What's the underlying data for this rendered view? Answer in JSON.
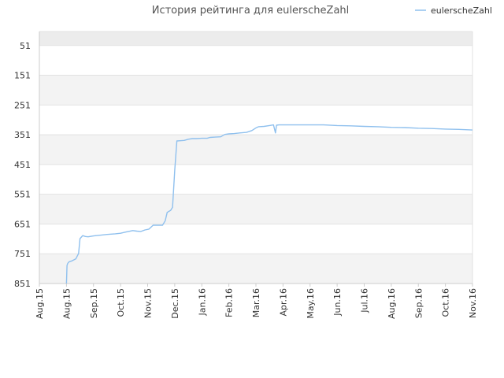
{
  "chart_data": {
    "type": "line",
    "title": "История рейтинга для eulerscheZahl",
    "legend_position": "top-right",
    "y_inverted": true,
    "ylim": [
      851,
      4
    ],
    "y_ticks": [
      51,
      151,
      251,
      351,
      451,
      551,
      651,
      751,
      851
    ],
    "x_ticks": [
      "Aug.15",
      "Aug.15",
      "Sep.15",
      "Oct.15",
      "Nov.15",
      "Dec.15",
      "Jan.16",
      "Feb.16",
      "Mar.16",
      "Apr.16",
      "May.16",
      "Jun.16",
      "Jul.16",
      "Aug.16",
      "Sep.16",
      "Oct.16",
      "Nov.16"
    ],
    "grid": "horizontal bands",
    "colors": {
      "line": "#8fc0ee",
      "band_light": "#f3f3f3",
      "band_top": "#ececec",
      "grid": "#e2e2e2",
      "axis": "#cccccc"
    },
    "series": [
      {
        "name": "eulerscheZahl",
        "points": [
          [
            1.0,
            851
          ],
          [
            1.02,
            790
          ],
          [
            1.05,
            783
          ],
          [
            1.1,
            778
          ],
          [
            1.2,
            775
          ],
          [
            1.35,
            768
          ],
          [
            1.45,
            750
          ],
          [
            1.5,
            700
          ],
          [
            1.55,
            695
          ],
          [
            1.6,
            690
          ],
          [
            1.7,
            693
          ],
          [
            1.8,
            694
          ],
          [
            2.0,
            691
          ],
          [
            2.2,
            689
          ],
          [
            2.5,
            686
          ],
          [
            2.8,
            684
          ],
          [
            3.0,
            682
          ],
          [
            3.2,
            678
          ],
          [
            3.45,
            673
          ],
          [
            3.6,
            675
          ],
          [
            3.75,
            676
          ],
          [
            3.9,
            671
          ],
          [
            4.05,
            668
          ],
          [
            4.2,
            655
          ],
          [
            4.4,
            655
          ],
          [
            4.55,
            655
          ],
          [
            4.65,
            640
          ],
          [
            4.72,
            612
          ],
          [
            4.85,
            605
          ],
          [
            4.92,
            595
          ],
          [
            5.0,
            470
          ],
          [
            5.08,
            372
          ],
          [
            5.2,
            371
          ],
          [
            5.35,
            370
          ],
          [
            5.5,
            366
          ],
          [
            5.65,
            364
          ],
          [
            5.8,
            364
          ],
          [
            6.0,
            363
          ],
          [
            6.2,
            363
          ],
          [
            6.3,
            360
          ],
          [
            6.5,
            359
          ],
          [
            6.7,
            358
          ],
          [
            6.85,
            350
          ],
          [
            7.0,
            348
          ],
          [
            7.2,
            347
          ],
          [
            7.4,
            345
          ],
          [
            7.65,
            343
          ],
          [
            7.85,
            337
          ],
          [
            8.0,
            328
          ],
          [
            8.1,
            324
          ],
          [
            8.3,
            323
          ],
          [
            8.5,
            320
          ],
          [
            8.65,
            318
          ],
          [
            8.72,
            345
          ],
          [
            8.76,
            319
          ],
          [
            8.85,
            318
          ],
          [
            9.0,
            318
          ],
          [
            9.5,
            318
          ],
          [
            10.0,
            318
          ],
          [
            10.5,
            318
          ],
          [
            11.0,
            320
          ],
          [
            11.5,
            321
          ],
          [
            12.0,
            323
          ],
          [
            12.5,
            324
          ],
          [
            13.0,
            326
          ],
          [
            13.5,
            327
          ],
          [
            14.0,
            329
          ],
          [
            14.5,
            330
          ],
          [
            15.0,
            332
          ],
          [
            15.5,
            333
          ],
          [
            16.0,
            335
          ]
        ]
      }
    ]
  }
}
